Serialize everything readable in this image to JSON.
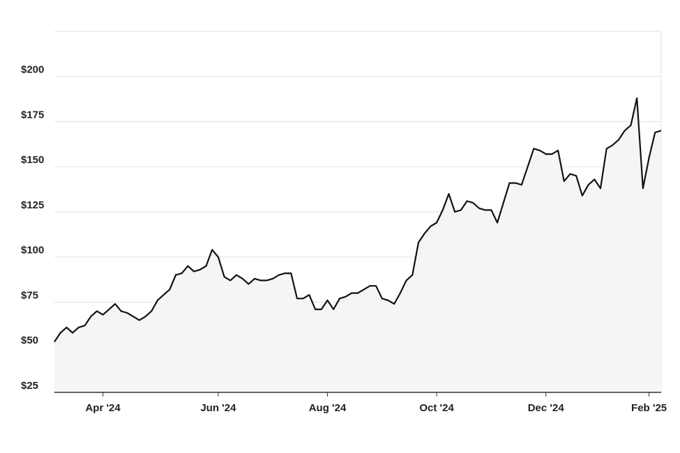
{
  "chart_data": {
    "type": "line",
    "categories": [
      null,
      null,
      null,
      null,
      null,
      null,
      null,
      null,
      "Apr '24",
      null,
      null,
      null,
      null,
      null,
      null,
      null,
      null,
      null,
      null,
      null,
      null,
      null,
      null,
      null,
      null,
      null,
      null,
      "Jun '24",
      null,
      null,
      null,
      null,
      null,
      null,
      null,
      null,
      null,
      null,
      null,
      null,
      null,
      null,
      null,
      null,
      null,
      "Aug '24",
      null,
      null,
      null,
      null,
      null,
      null,
      null,
      null,
      null,
      null,
      null,
      null,
      null,
      null,
      null,
      null,
      null,
      "Oct '24",
      null,
      null,
      null,
      null,
      null,
      null,
      null,
      null,
      null,
      null,
      null,
      null,
      null,
      null,
      null,
      null,
      null,
      "Dec '24",
      null,
      null,
      null,
      null,
      null,
      null,
      null,
      null,
      null,
      null,
      null,
      null,
      null,
      null,
      null,
      null,
      "Feb '25",
      null,
      null
    ],
    "values": [
      53,
      58,
      61,
      58,
      61,
      62,
      67,
      70,
      68,
      71,
      74,
      70,
      69,
      67,
      65,
      67,
      70,
      76,
      79,
      82,
      90,
      91,
      95,
      92,
      93,
      95,
      104,
      100,
      89,
      87,
      90,
      88,
      85,
      88,
      87,
      87,
      88,
      90,
      91,
      91,
      77,
      77,
      79,
      71,
      71,
      76,
      71,
      77,
      78,
      80,
      80,
      82,
      84,
      84,
      77,
      76,
      74,
      80,
      87,
      90,
      108,
      113,
      117,
      119,
      126,
      135,
      125,
      126,
      131,
      130,
      127,
      126,
      126,
      119,
      130,
      141,
      141,
      140,
      150,
      160,
      159,
      157,
      157,
      159,
      142,
      146,
      145,
      134,
      140,
      143,
      138,
      160,
      162,
      165,
      170,
      173,
      188,
      138,
      155,
      169,
      170
    ],
    "color": "#111111",
    "ylim": [
      25,
      225
    ],
    "yticks": [
      {
        "value": 25,
        "label": "$25"
      },
      {
        "value": 50,
        "label": "$50"
      },
      {
        "value": 75,
        "label": "$75"
      },
      {
        "value": 100,
        "label": "$100"
      },
      {
        "value": 125,
        "label": "$125"
      },
      {
        "value": 150,
        "label": "$150"
      },
      {
        "value": 175,
        "label": "$175"
      },
      {
        "value": 200,
        "label": "$200"
      }
    ],
    "grid": true
  }
}
